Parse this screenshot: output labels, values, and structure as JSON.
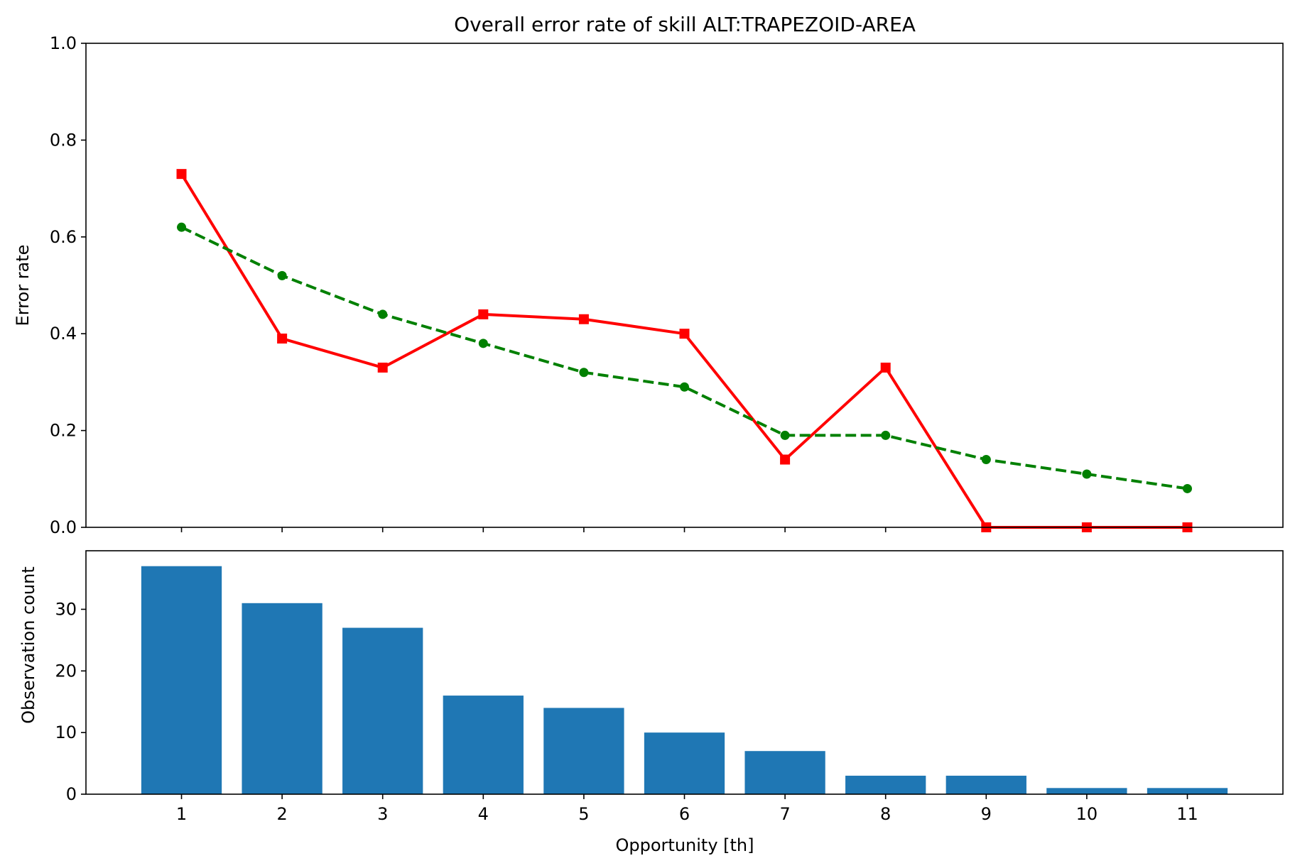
{
  "chart_data": [
    {
      "type": "line",
      "title": "Overall error rate of skill ALT:TRAPEZOID-AREA",
      "xlabel": "",
      "ylabel": "Error rate",
      "x": [
        1,
        2,
        3,
        4,
        5,
        6,
        7,
        8,
        9,
        10,
        11
      ],
      "xlim": [
        0.05,
        11.95
      ],
      "ylim": [
        0,
        1
      ],
      "yticks": [
        "0.0",
        "0.2",
        "0.4",
        "0.6",
        "0.8",
        "1.0"
      ],
      "grid": false,
      "series": [
        {
          "values": [
            0.73,
            0.39,
            0.33,
            0.44,
            0.43,
            0.4,
            0.14,
            0.33,
            0.0,
            0.0,
            0.0
          ],
          "color": "#ff0000",
          "linestyle": "solid",
          "marker": "square"
        },
        {
          "values": [
            0.62,
            0.52,
            0.44,
            0.38,
            0.32,
            0.29,
            0.19,
            0.19,
            0.14,
            0.11,
            0.08
          ],
          "color": "#008000",
          "linestyle": "dashed",
          "marker": "circle"
        }
      ]
    },
    {
      "type": "bar",
      "title": "",
      "xlabel": "Opportunity [th]",
      "ylabel": "Observation count",
      "categories": [
        "1",
        "2",
        "3",
        "4",
        "5",
        "6",
        "7",
        "8",
        "9",
        "10",
        "11"
      ],
      "values": [
        37,
        31,
        27,
        16,
        14,
        10,
        7,
        3,
        3,
        1,
        1
      ],
      "xlim": [
        0.05,
        11.95
      ],
      "ylim": [
        0,
        39.5
      ],
      "yticks": [
        "0",
        "10",
        "20",
        "30"
      ],
      "color": "#1f77b4",
      "grid": false
    }
  ]
}
